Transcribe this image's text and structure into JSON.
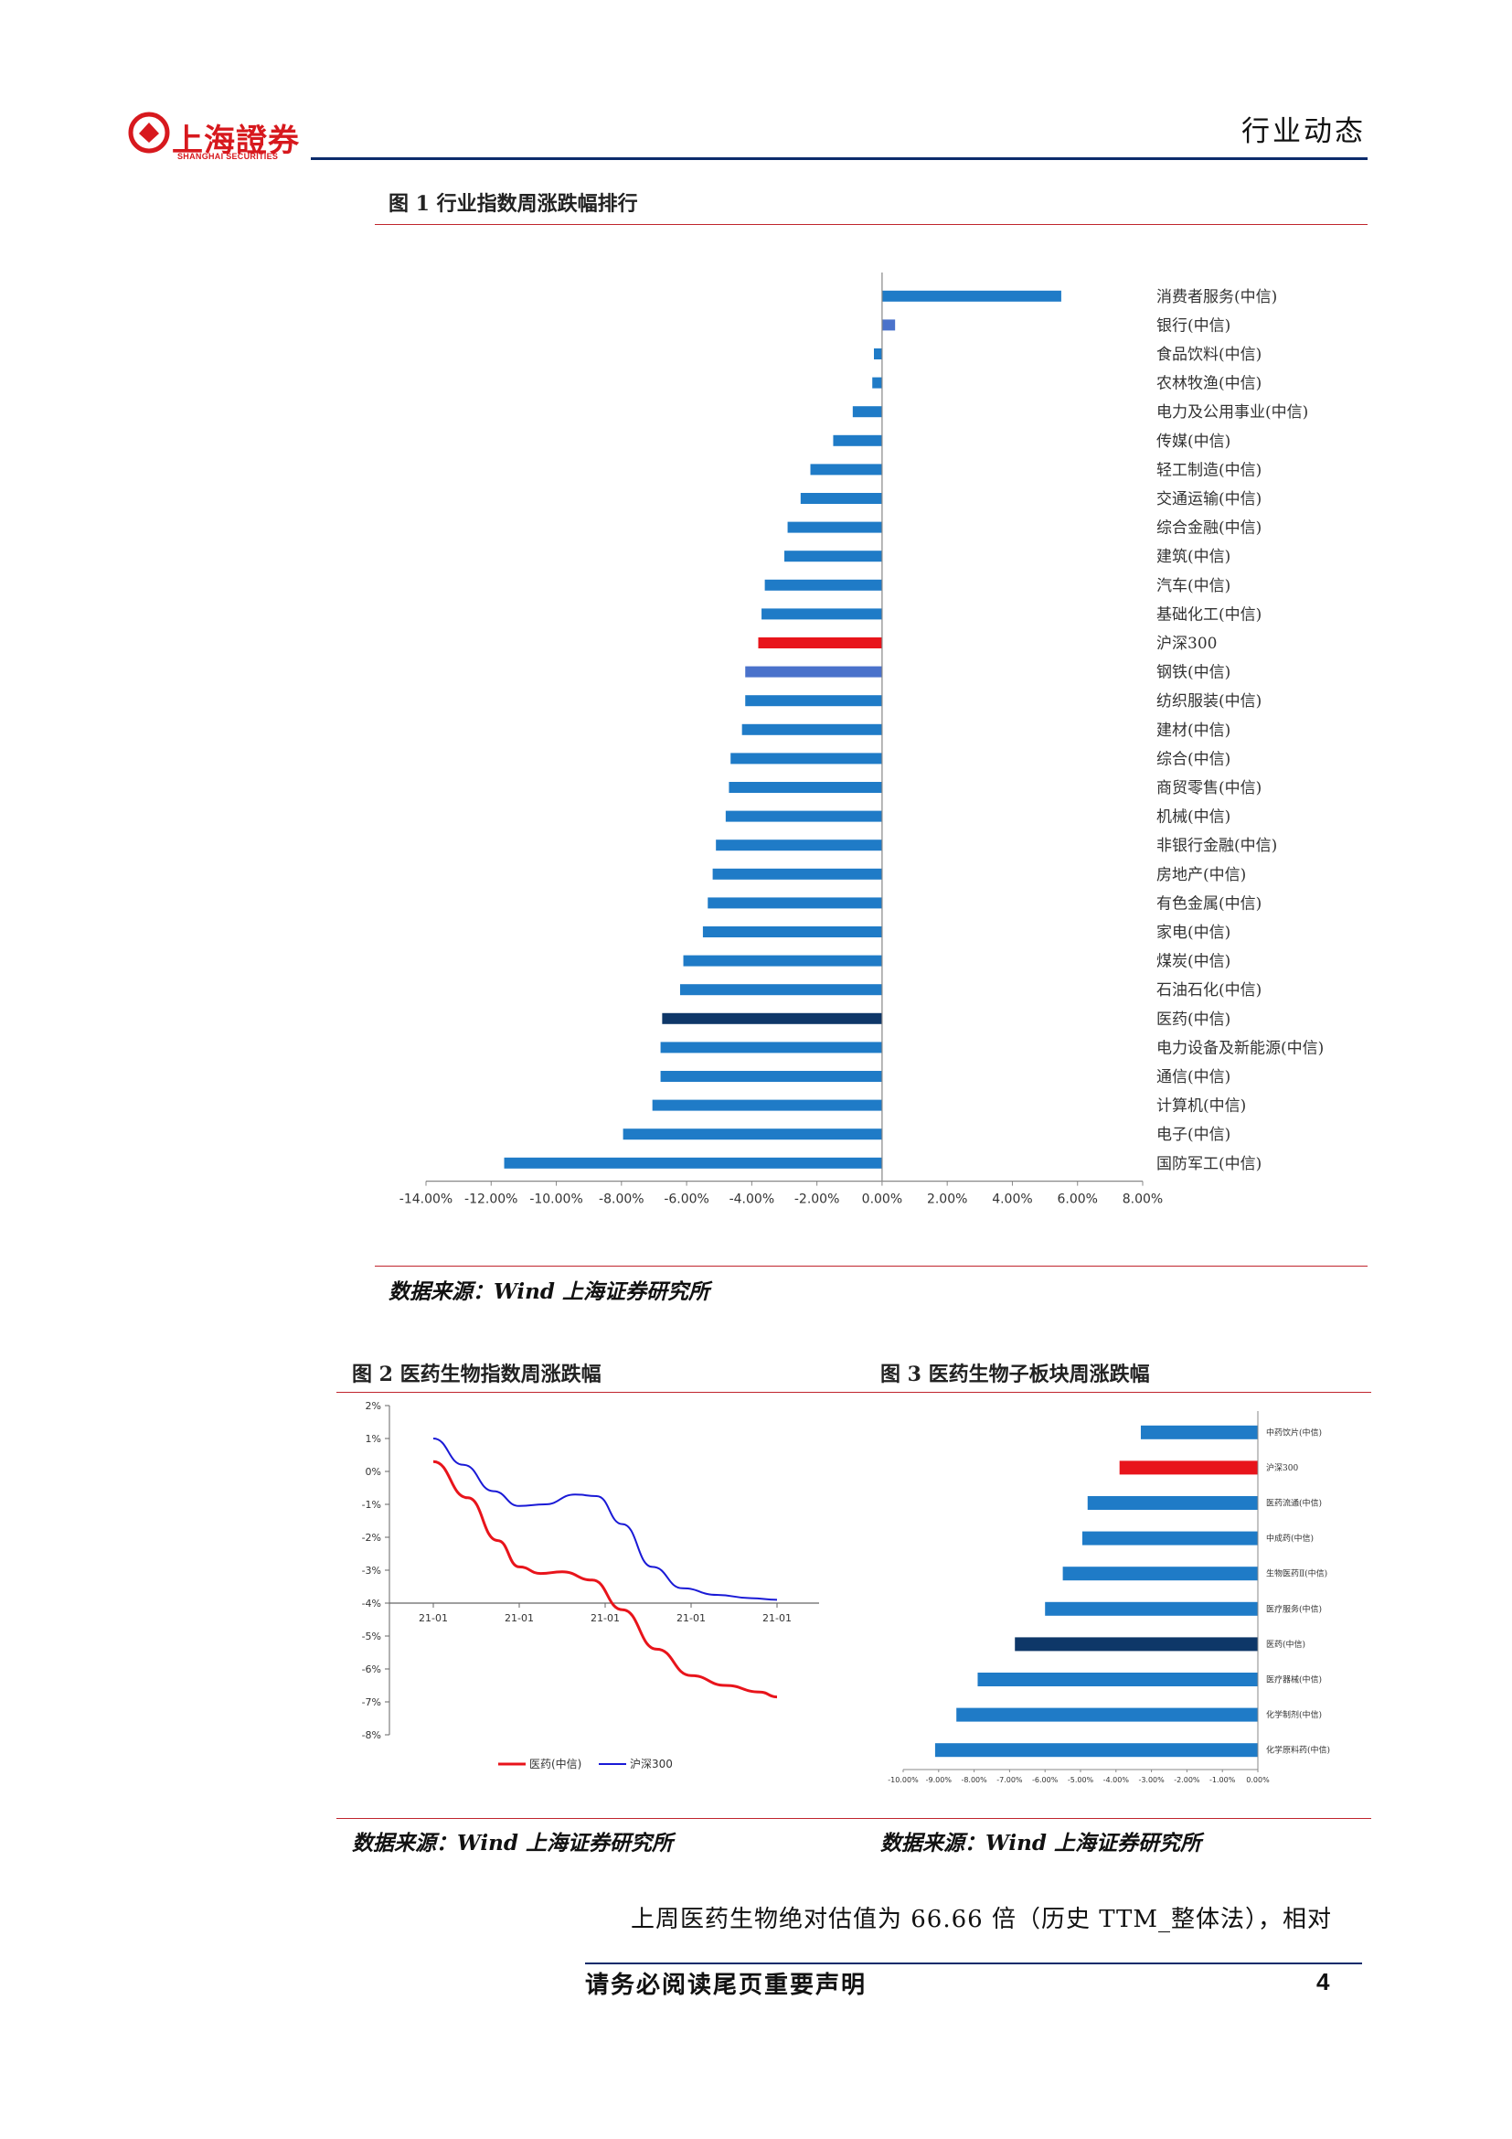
{
  "header": {
    "logo_cn": "上海證券",
    "logo_en": "SHANGHAI SECURITIES",
    "section": "行业动态"
  },
  "figure1": {
    "title": "图 1 行业指数周涨跌幅排行",
    "source": "数据来源：Wind 上海证券研究所",
    "colors": {
      "default": "#1f7bc7",
      "highlight_red": "#e8141b",
      "highlight_navy": "#0e3768",
      "highlight_light": "#4a72cb"
    },
    "chart_data": {
      "type": "bar",
      "orientation": "horizontal",
      "xlim": [
        -14,
        8
      ],
      "x_ticks": [
        "-14.00%",
        "-12.00%",
        "-10.00%",
        "-8.00%",
        "-6.00%",
        "-4.00%",
        "-2.00%",
        "0.00%",
        "2.00%",
        "4.00%",
        "6.00%",
        "8.00%"
      ],
      "categories": [
        "消费者服务(中信)",
        "银行(中信)",
        "食品饮料(中信)",
        "农林牧渔(中信)",
        "电力及公用事业(中信)",
        "传媒(中信)",
        "轻工制造(中信)",
        "交通运输(中信)",
        "综合金融(中信)",
        "建筑(中信)",
        "汽车(中信)",
        "基础化工(中信)",
        "沪深300",
        "钢铁(中信)",
        "纺织服装(中信)",
        "建材(中信)",
        "综合(中信)",
        "商贸零售(中信)",
        "机械(中信)",
        "非银行金融(中信)",
        "房地产(中信)",
        "有色金属(中信)",
        "家电(中信)",
        "煤炭(中信)",
        "石油石化(中信)",
        "医药(中信)",
        "电力设备及新能源(中信)",
        "通信(中信)",
        "计算机(中信)",
        "电子(中信)",
        "国防军工(中信)"
      ],
      "values": [
        5.5,
        0.4,
        -0.25,
        -0.3,
        -0.9,
        -1.5,
        -2.2,
        -2.5,
        -2.9,
        -3.0,
        -3.6,
        -3.7,
        -3.8,
        -4.2,
        -4.2,
        -4.3,
        -4.65,
        -4.7,
        -4.8,
        -5.1,
        -5.2,
        -5.35,
        -5.5,
        -6.1,
        -6.2,
        -6.75,
        -6.8,
        -6.8,
        -7.05,
        -7.95,
        -11.6
      ],
      "highlights": {
        "沪深300": "highlight_red",
        "钢铁(中信)": "highlight_light",
        "医药(中信)": "highlight_navy",
        "银行(中信)": "highlight_light"
      }
    }
  },
  "figure2": {
    "title": "图 2 医药生物指数周涨跌幅",
    "source": "数据来源：Wind 上海证券研究所",
    "chart_data": {
      "type": "line",
      "ylim": [
        -8,
        2
      ],
      "y_ticks": [
        "2%",
        "1%",
        "0%",
        "-1%",
        "-2%",
        "-3%",
        "-4%",
        "-5%",
        "-6%",
        "-7%",
        "-8%"
      ],
      "x_ticks": [
        "21-01",
        "21-01",
        "21-01",
        "21-01",
        "21-01"
      ],
      "series": [
        {
          "name": "医药(中信)",
          "color": "#e8141b",
          "x": [
            0,
            0.4,
            0.75,
            1.0,
            1.25,
            1.5,
            1.85,
            2.2,
            2.6,
            3.0,
            3.4,
            3.8,
            4.0
          ],
          "values": [
            0.3,
            -0.8,
            -2.1,
            -2.9,
            -3.1,
            -3.05,
            -3.3,
            -4.2,
            -5.4,
            -6.2,
            -6.5,
            -6.7,
            -6.85
          ]
        },
        {
          "name": "沪深300",
          "color": "#1a1ad6",
          "x": [
            0,
            0.35,
            0.7,
            1.0,
            1.3,
            1.65,
            1.9,
            2.2,
            2.55,
            2.9,
            3.3,
            3.7,
            4.0
          ],
          "values": [
            1.0,
            0.2,
            -0.6,
            -1.05,
            -1.0,
            -0.7,
            -0.75,
            -1.6,
            -2.9,
            -3.55,
            -3.75,
            -3.85,
            -3.9
          ]
        }
      ]
    }
  },
  "figure3": {
    "title": "图 3 医药生物子板块周涨跌幅",
    "source": "数据来源：Wind 上海证券研究所",
    "chart_data": {
      "type": "bar",
      "orientation": "horizontal",
      "xlim": [
        -10,
        0
      ],
      "x_ticks": [
        "-10.00%",
        "-9.00%",
        "-8.00%",
        "-7.00%",
        "-6.00%",
        "-5.00%",
        "-4.00%",
        "-3.00%",
        "-2.00%",
        "-1.00%",
        "0.00%"
      ],
      "categories": [
        "中药饮片(中信)",
        "沪深300",
        "医药流通(中信)",
        "中成药(中信)",
        "生物医药Ⅱ(中信)",
        "医疗服务(中信)",
        "医药(中信)",
        "医疗器械(中信)",
        "化学制剂(中信)",
        "化学原料药(中信)"
      ],
      "values": [
        -3.3,
        -3.9,
        -4.8,
        -4.95,
        -5.5,
        -6.0,
        -6.85,
        -7.9,
        -8.5,
        -9.1
      ],
      "highlights": {
        "沪深300": "highlight_red",
        "医药(中信)": "highlight_navy"
      }
    }
  },
  "body": {
    "text": "上周医药生物绝对估值为 66.66 倍（历史 TTM_整体法），相对"
  },
  "footer": {
    "disclaimer": "请务必阅读尾页重要声明",
    "page": "4"
  }
}
